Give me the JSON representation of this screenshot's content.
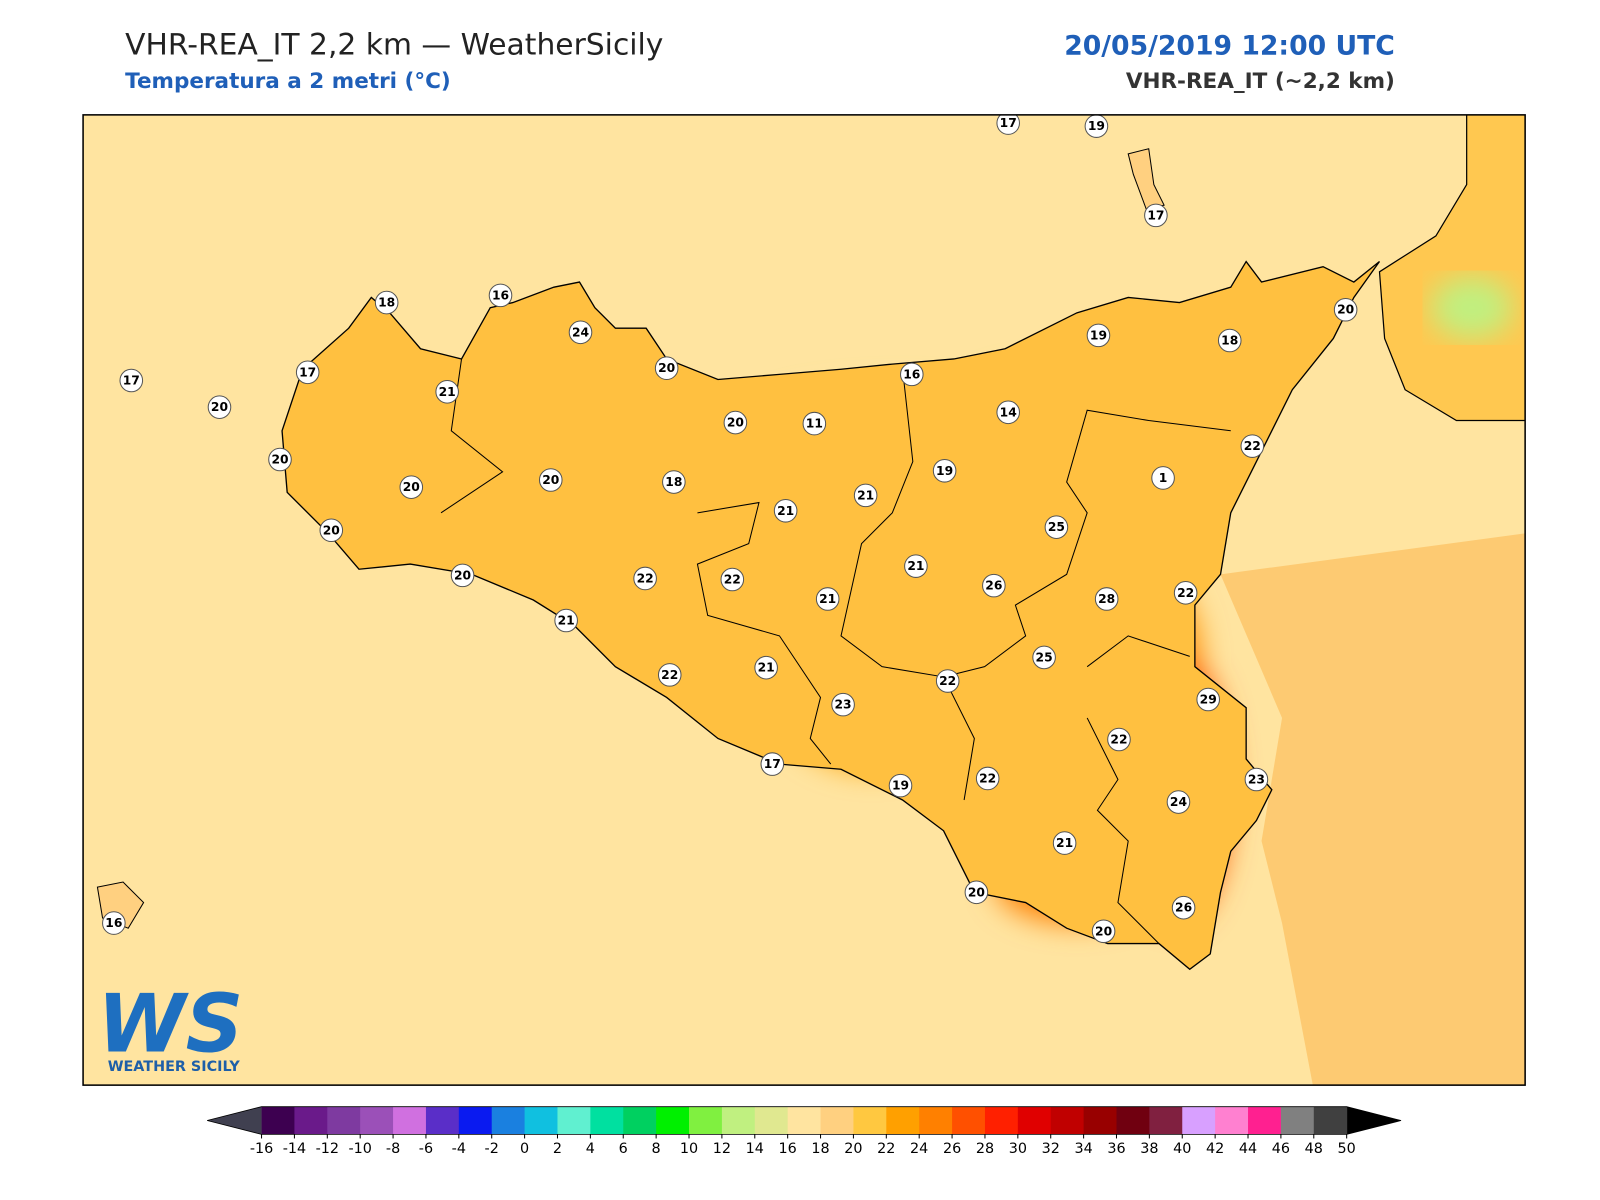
{
  "header": {
    "title": "VHR-REA_IT 2,2 km — WeatherSicily",
    "subtitle": "Temperatura a 2 metri (°C)",
    "datetime": "20/05/2019 12:00 UTC",
    "model": "VHR-REA_IT (~2,2 km)"
  },
  "map": {
    "stations": [
      17,
      19,
      17,
      18,
      16,
      24,
      20,
      17,
      17,
      20,
      21,
      19,
      18,
      20,
      16,
      20,
      11,
      14,
      22,
      20,
      20,
      20,
      18,
      19,
      1,
      21,
      21,
      20,
      25,
      20,
      22,
      22,
      21,
      26,
      28,
      22,
      21,
      21,
      25,
      22,
      21,
      22,
      23,
      29,
      22,
      17,
      19,
      22,
      23,
      24,
      21,
      20,
      26,
      20,
      16
    ]
  },
  "logo": {
    "mark": "WS",
    "text": "WEATHER SICILY"
  },
  "colorbar": {
    "ticks": [
      -16,
      -14,
      -12,
      -10,
      -8,
      -6,
      -4,
      -2,
      0,
      2,
      4,
      6,
      8,
      10,
      12,
      14,
      16,
      18,
      20,
      22,
      24,
      26,
      28,
      30,
      32,
      34,
      36,
      38,
      40,
      42,
      44,
      46,
      48,
      50
    ],
    "colors": [
      "#3d0050",
      "#6a1a8a",
      "#7e3aa0",
      "#9b50b8",
      "#d070e0",
      "#5a2ec8",
      "#0a1af0",
      "#1a80e0",
      "#10c0e0",
      "#60f0d0",
      "#00e0a0",
      "#00d060",
      "#00f000",
      "#80f040",
      "#c0f080",
      "#e0e890",
      "#ffe4a0",
      "#ffd080",
      "#ffc840",
      "#ffa000",
      "#ff8000",
      "#ff5000",
      "#ff2000",
      "#e00000",
      "#c00000",
      "#980000",
      "#700010",
      "#802040",
      "#d8a0ff",
      "#ff80d0",
      "#ff2090",
      "#808080",
      "#404040"
    ],
    "under_color": "#404050",
    "over_color": "#000000"
  }
}
